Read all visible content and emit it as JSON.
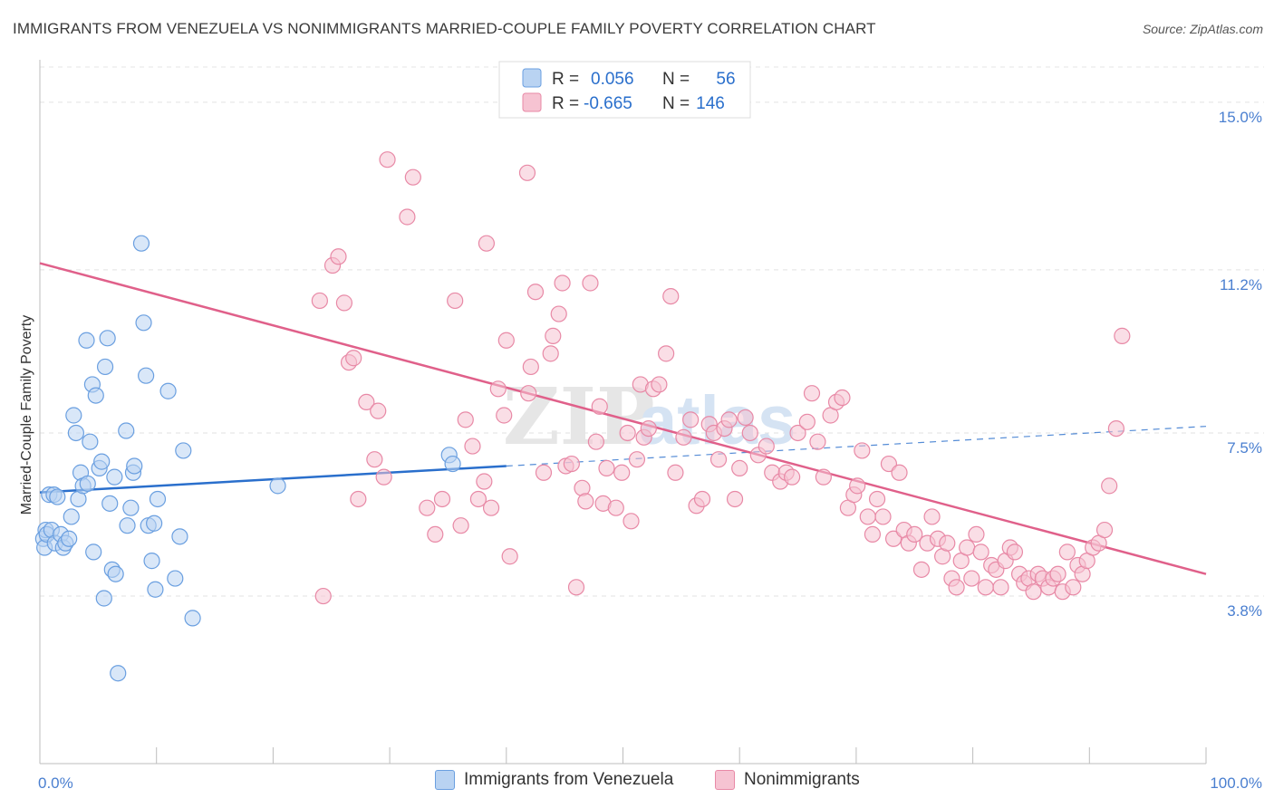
{
  "header": {
    "title": "IMMIGRANTS FROM VENEZUELA VS NONIMMIGRANTS MARRIED-COUPLE FAMILY POVERTY CORRELATION CHART",
    "source": "Source: ZipAtlas.com"
  },
  "watermark": {
    "text_a": "ZIP",
    "text_b": "atlas"
  },
  "chart_data": {
    "type": "scatter",
    "title": "IMMIGRANTS FROM VENEZUELA VS NONIMMIGRANTS MARRIED-COUPLE FAMILY POVERTY CORRELATION CHART",
    "ylabel": "Married-Couple Family Poverty",
    "xlabel": "",
    "xlim": [
      0,
      100
    ],
    "ylim": [
      0,
      15.8
    ],
    "x_tick_labels": [
      {
        "value": 0,
        "label": "0.0%"
      },
      {
        "value": 100,
        "label": "100.0%"
      }
    ],
    "y_tick_labels": [
      {
        "value": 3.8,
        "label": "3.8%"
      },
      {
        "value": 7.5,
        "label": "7.5%"
      },
      {
        "value": 11.2,
        "label": "11.2%"
      },
      {
        "value": 15.0,
        "label": "15.0%"
      }
    ],
    "grid": true,
    "legend_placement": "top-center",
    "legend": {
      "items": [
        {
          "r_label": "R =",
          "r_value": "0.056",
          "n_label": "N =",
          "n_value": "56"
        },
        {
          "r_label": "R =",
          "r_value": "-0.665",
          "n_label": "N =",
          "n_value": "146"
        }
      ]
    },
    "series": [
      {
        "name": "Immigrants from Venezuela",
        "color": "#6a9fe0",
        "fill": "#b9d3f2",
        "trend": {
          "x0": 0,
          "y0": 6.15,
          "x1": 40,
          "y1": 6.75,
          "x_end": 100,
          "y_end": 7.65,
          "color": "#2a6fcc"
        },
        "points": [
          [
            0.3,
            5.1
          ],
          [
            0.4,
            4.9
          ],
          [
            0.5,
            5.3
          ],
          [
            0.6,
            5.2
          ],
          [
            0.8,
            6.1
          ],
          [
            1.0,
            5.3
          ],
          [
            1.2,
            6.1
          ],
          [
            1.3,
            5.0
          ],
          [
            1.5,
            6.05
          ],
          [
            1.8,
            5.2
          ],
          [
            2.0,
            4.9
          ],
          [
            2.2,
            5.0
          ],
          [
            2.5,
            5.1
          ],
          [
            2.7,
            5.6
          ],
          [
            2.9,
            7.9
          ],
          [
            3.1,
            7.5
          ],
          [
            3.3,
            6.0
          ],
          [
            3.5,
            6.6
          ],
          [
            3.7,
            6.3
          ],
          [
            4.0,
            9.6
          ],
          [
            4.1,
            6.35
          ],
          [
            4.3,
            7.3
          ],
          [
            4.5,
            8.6
          ],
          [
            4.6,
            4.8
          ],
          [
            4.8,
            8.35
          ],
          [
            5.1,
            6.7
          ],
          [
            5.3,
            6.85
          ],
          [
            5.5,
            3.75
          ],
          [
            5.6,
            9.0
          ],
          [
            5.8,
            9.65
          ],
          [
            6.0,
            5.9
          ],
          [
            6.2,
            4.4
          ],
          [
            6.4,
            6.5
          ],
          [
            6.5,
            4.3
          ],
          [
            7.4,
            7.55
          ],
          [
            7.5,
            5.4
          ],
          [
            7.8,
            5.8
          ],
          [
            8.0,
            6.6
          ],
          [
            8.1,
            6.75
          ],
          [
            8.7,
            11.8
          ],
          [
            8.9,
            10.0
          ],
          [
            9.1,
            8.8
          ],
          [
            9.3,
            5.4
          ],
          [
            9.6,
            4.6
          ],
          [
            9.8,
            5.45
          ],
          [
            9.9,
            3.95
          ],
          [
            10.1,
            6.0
          ],
          [
            11.0,
            8.45
          ],
          [
            11.6,
            4.2
          ],
          [
            12.0,
            5.15
          ],
          [
            12.3,
            7.1
          ],
          [
            13.1,
            3.3
          ],
          [
            20.4,
            6.3
          ],
          [
            35.1,
            7.0
          ],
          [
            35.4,
            6.8
          ],
          [
            6.7,
            2.05
          ]
        ]
      },
      {
        "name": "Nonimmigrants",
        "color": "#e889a6",
        "fill": "#f6c3d2",
        "trend": {
          "x0": 0,
          "y0": 11.35,
          "x1": 100,
          "y1": 4.3,
          "color": "#e0608a"
        },
        "points": [
          [
            24.0,
            10.5
          ],
          [
            24.3,
            3.8
          ],
          [
            25.1,
            11.3
          ],
          [
            25.6,
            11.5
          ],
          [
            26.1,
            10.45
          ],
          [
            26.5,
            9.1
          ],
          [
            26.9,
            9.2
          ],
          [
            27.3,
            6.0
          ],
          [
            28.0,
            8.2
          ],
          [
            28.7,
            6.9
          ],
          [
            29.0,
            8.0
          ],
          [
            29.5,
            6.5
          ],
          [
            29.8,
            13.7
          ],
          [
            31.5,
            12.4
          ],
          [
            32.0,
            13.3
          ],
          [
            33.2,
            5.8
          ],
          [
            33.9,
            5.2
          ],
          [
            34.5,
            6.0
          ],
          [
            35.6,
            10.5
          ],
          [
            36.1,
            5.4
          ],
          [
            36.5,
            7.8
          ],
          [
            37.1,
            7.2
          ],
          [
            37.6,
            6.0
          ],
          [
            38.1,
            6.4
          ],
          [
            38.3,
            11.8
          ],
          [
            38.7,
            5.8
          ],
          [
            39.3,
            8.5
          ],
          [
            39.8,
            7.9
          ],
          [
            40.0,
            9.6
          ],
          [
            40.3,
            4.7
          ],
          [
            41.8,
            13.4
          ],
          [
            41.9,
            8.4
          ],
          [
            42.1,
            9.0
          ],
          [
            42.5,
            10.7
          ],
          [
            43.2,
            6.6
          ],
          [
            43.8,
            9.3
          ],
          [
            44.0,
            9.7
          ],
          [
            44.5,
            10.2
          ],
          [
            44.8,
            10.9
          ],
          [
            45.1,
            6.75
          ],
          [
            45.6,
            6.8
          ],
          [
            46.0,
            4.0
          ],
          [
            46.5,
            6.25
          ],
          [
            46.8,
            5.95
          ],
          [
            47.2,
            10.9
          ],
          [
            47.7,
            7.3
          ],
          [
            48.0,
            8.1
          ],
          [
            48.3,
            5.9
          ],
          [
            48.6,
            6.7
          ],
          [
            49.4,
            5.8
          ],
          [
            49.9,
            6.6
          ],
          [
            50.4,
            7.5
          ],
          [
            50.7,
            5.5
          ],
          [
            51.2,
            6.9
          ],
          [
            51.5,
            8.6
          ],
          [
            51.8,
            7.4
          ],
          [
            52.2,
            7.6
          ],
          [
            52.6,
            8.5
          ],
          [
            53.1,
            8.6
          ],
          [
            53.7,
            9.3
          ],
          [
            54.1,
            10.6
          ],
          [
            54.5,
            6.6
          ],
          [
            55.2,
            7.4
          ],
          [
            55.8,
            7.8
          ],
          [
            56.3,
            5.85
          ],
          [
            56.8,
            6.0
          ],
          [
            57.4,
            7.7
          ],
          [
            57.8,
            7.5
          ],
          [
            58.2,
            6.9
          ],
          [
            58.7,
            7.6
          ],
          [
            59.1,
            7.8
          ],
          [
            59.6,
            6.0
          ],
          [
            60.0,
            6.7
          ],
          [
            60.5,
            7.85
          ],
          [
            60.9,
            7.5
          ],
          [
            61.6,
            7.0
          ],
          [
            62.3,
            7.2
          ],
          [
            62.8,
            6.6
          ],
          [
            63.5,
            6.4
          ],
          [
            64.0,
            6.6
          ],
          [
            64.5,
            6.5
          ],
          [
            65.0,
            7.5
          ],
          [
            65.8,
            7.75
          ],
          [
            66.2,
            8.4
          ],
          [
            66.7,
            7.3
          ],
          [
            67.2,
            6.5
          ],
          [
            67.8,
            7.9
          ],
          [
            68.3,
            8.2
          ],
          [
            68.8,
            8.3
          ],
          [
            69.3,
            5.8
          ],
          [
            69.8,
            6.1
          ],
          [
            70.1,
            6.3
          ],
          [
            70.5,
            7.1
          ],
          [
            71.0,
            5.6
          ],
          [
            71.4,
            5.2
          ],
          [
            71.8,
            6.0
          ],
          [
            72.3,
            5.6
          ],
          [
            72.8,
            6.8
          ],
          [
            73.2,
            5.1
          ],
          [
            73.7,
            6.6
          ],
          [
            74.1,
            5.3
          ],
          [
            74.5,
            5.0
          ],
          [
            75.0,
            5.2
          ],
          [
            75.6,
            4.4
          ],
          [
            76.1,
            5.0
          ],
          [
            76.5,
            5.6
          ],
          [
            77.0,
            5.1
          ],
          [
            77.4,
            4.7
          ],
          [
            77.8,
            5.0
          ],
          [
            78.2,
            4.2
          ],
          [
            78.6,
            4.0
          ],
          [
            79.0,
            4.6
          ],
          [
            79.5,
            4.9
          ],
          [
            79.9,
            4.2
          ],
          [
            80.3,
            5.2
          ],
          [
            80.7,
            4.8
          ],
          [
            81.1,
            4.0
          ],
          [
            81.6,
            4.5
          ],
          [
            82.0,
            4.4
          ],
          [
            82.4,
            4.0
          ],
          [
            82.8,
            4.6
          ],
          [
            83.2,
            4.9
          ],
          [
            83.6,
            4.8
          ],
          [
            84.0,
            4.3
          ],
          [
            84.4,
            4.1
          ],
          [
            84.8,
            4.2
          ],
          [
            85.2,
            3.9
          ],
          [
            85.6,
            4.3
          ],
          [
            86.0,
            4.2
          ],
          [
            86.5,
            4.0
          ],
          [
            86.9,
            4.2
          ],
          [
            87.3,
            4.3
          ],
          [
            87.7,
            3.9
          ],
          [
            88.1,
            4.8
          ],
          [
            88.6,
            4.0
          ],
          [
            89.0,
            4.5
          ],
          [
            89.4,
            4.3
          ],
          [
            89.8,
            4.6
          ],
          [
            90.3,
            4.9
          ],
          [
            90.8,
            5.0
          ],
          [
            91.3,
            5.3
          ],
          [
            91.7,
            6.3
          ],
          [
            92.3,
            7.6
          ],
          [
            92.8,
            9.7
          ]
        ]
      }
    ]
  },
  "bottom_legend": [
    {
      "label": "Immigrants from Venezuela"
    },
    {
      "label": "Nonimmigrants"
    }
  ],
  "colors": {
    "blue_text": "#2a6fcc",
    "axis_label": "#4a7fd0",
    "grid": "#e2e2e2"
  }
}
